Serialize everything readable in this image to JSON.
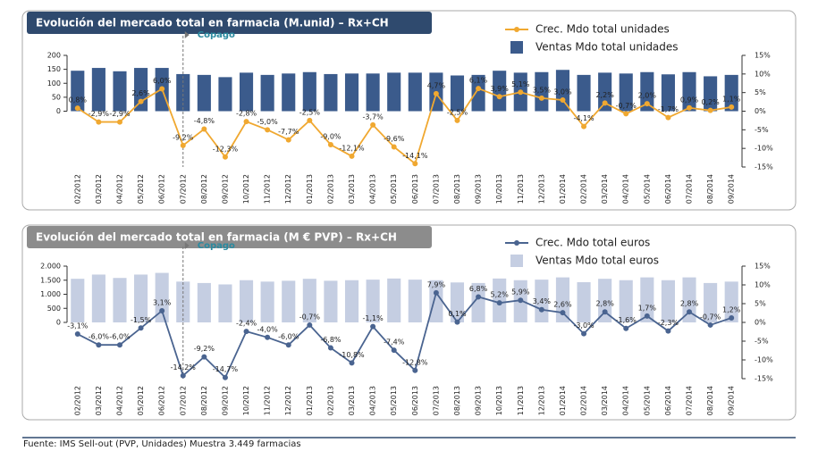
{
  "chart_data": [
    {
      "type": "bar",
      "title": "Evolución del mercado total en farmacia (M.unid) – Rx+CH",
      "categories": [
        "02/2012",
        "03/2012",
        "04/2012",
        "05/2012",
        "06/2012",
        "07/2012",
        "08/2012",
        "09/2012",
        "10/2012",
        "11/2012",
        "12/2012",
        "01/2013",
        "02/2013",
        "03/2013",
        "04/2013",
        "05/2013",
        "06/2013",
        "07/2013",
        "08/2013",
        "09/2013",
        "10/2013",
        "11/2013",
        "12/2013",
        "01/2014",
        "02/2014",
        "03/2014",
        "04/2014",
        "05/2014",
        "06/2014",
        "07/2014",
        "08/2014",
        "09/2014"
      ],
      "series": [
        {
          "name": "Crec. Mdo total unidades",
          "type": "line",
          "axis": "y2",
          "color": "#f0a830",
          "values": [
            0.8,
            -2.9,
            -2.9,
            2.6,
            6.0,
            -9.2,
            -4.8,
            -12.3,
            -2.8,
            -5.0,
            -7.7,
            -2.5,
            -9.0,
            -12.1,
            -3.7,
            -9.6,
            -14.1,
            4.7,
            -2.5,
            6.1,
            3.9,
            5.1,
            3.5,
            3.0,
            -4.1,
            2.2,
            -0.7,
            2.0,
            -1.7,
            0.9,
            0.2,
            1.1
          ],
          "value_labels": [
            "0,8%",
            "-2,9%",
            "-2,9%",
            "2,6%",
            "6,0%",
            "-9,2%",
            "-4,8%",
            "-12,3%",
            "-2,8%",
            "-5,0%",
            "-7,7%",
            "-2,5%",
            "-9,0%",
            "-12,1%",
            "-3,7%",
            "-9,6%",
            "-14,1%",
            "4,7%",
            "-2,5%",
            "6,1%",
            "3,9%",
            "5,1%",
            "3,5%",
            "3,0%",
            "-4,1%",
            "2,2%",
            "-0,7%",
            "2,0%",
            "-1,7%",
            "0,9%",
            "0,2%",
            "1,1%"
          ]
        },
        {
          "name": "Ventas Mdo total unidades",
          "type": "bar",
          "color": "#3b5b8c",
          "values": [
            145,
            155,
            143,
            155,
            155,
            133,
            130,
            122,
            138,
            130,
            135,
            140,
            133,
            135,
            135,
            138,
            138,
            138,
            128,
            130,
            145,
            138,
            140,
            148,
            130,
            138,
            135,
            140,
            132,
            140,
            125,
            130
          ]
        }
      ],
      "ylim": [
        -200,
        200
      ],
      "yticks": [
        0,
        50,
        100,
        150,
        200
      ],
      "y2lim": [
        -15,
        15
      ],
      "y2ticks": [
        {
          "value": 15,
          "label": "15%"
        },
        {
          "value": 10,
          "label": "10%"
        },
        {
          "value": 5,
          "label": "5%"
        },
        {
          "value": 0,
          "label": "0%"
        },
        {
          "value": -5,
          "label": "-5%"
        },
        {
          "value": -10,
          "label": "-10%"
        },
        {
          "value": -15,
          "label": "-15%"
        }
      ],
      "annotations": [
        {
          "text": "Copago"
        }
      ]
    },
    {
      "type": "bar",
      "title": "Evolución del mercado total en farmacia (M € PVP) – Rx+CH",
      "categories": [
        "02/2012",
        "03/2012",
        "04/2012",
        "05/2012",
        "06/2012",
        "07/2012",
        "08/2012",
        "09/2012",
        "10/2012",
        "11/2012",
        "12/2012",
        "01/2013",
        "02/2013",
        "03/2013",
        "04/2013",
        "05/2013",
        "06/2013",
        "07/2013",
        "08/2013",
        "09/2013",
        "10/2013",
        "11/2013",
        "12/2013",
        "01/2014",
        "02/2014",
        "03/2014",
        "04/2014",
        "05/2014",
        "06/2014",
        "07/2014",
        "08/2014",
        "09/2014"
      ],
      "series": [
        {
          "name": "Crec. Mdo total euros",
          "type": "line",
          "axis": "y2",
          "color": "#4a6490",
          "values": [
            -3.1,
            -6.0,
            -6.0,
            -1.5,
            3.1,
            -14.2,
            -9.2,
            -14.7,
            -2.4,
            -4.0,
            -6.0,
            -0.7,
            -6.8,
            -10.8,
            -1.1,
            -7.4,
            -12.8,
            7.9,
            0.1,
            6.8,
            5.2,
            5.9,
            3.4,
            2.6,
            -3.0,
            2.8,
            -1.6,
            1.7,
            -2.3,
            2.8,
            -0.7,
            1.2
          ],
          "value_labels": [
            "-3,1%",
            "-6,0%",
            "-6,0%",
            "-1,5%",
            "3,1%",
            "-14,2%",
            "-9,2%",
            "-14,7%",
            "-2,4%",
            "-4,0%",
            "-6,0%",
            "-0,7%",
            "-6,8%",
            "-10,8%",
            "-1,1%",
            "-7,4%",
            "-12,8%",
            "7,9%",
            "0,1%",
            "6,8%",
            "5,2%",
            "5,9%",
            "3,4%",
            "2,6%",
            "-3,0%",
            "2,8%",
            "-1,6%",
            "1,7%",
            "-2,3%",
            "2,8%",
            "-0,7%",
            "1,2%"
          ]
        },
        {
          "name": "Ventas Mdo total euros",
          "type": "bar",
          "color": "#c5cee2",
          "values": [
            1550,
            1700,
            1580,
            1700,
            1760,
            1450,
            1400,
            1350,
            1500,
            1450,
            1480,
            1550,
            1480,
            1500,
            1520,
            1560,
            1520,
            1500,
            1420,
            1400,
            1560,
            1500,
            1520,
            1600,
            1430,
            1550,
            1500,
            1600,
            1500,
            1600,
            1400,
            1450
          ]
        }
      ],
      "ylim": [
        -2000,
        2000
      ],
      "yticks": [
        0,
        500,
        {
          "value": 1000,
          "label": "1.000"
        },
        {
          "value": 1500,
          "label": "1.500"
        },
        {
          "value": 2000,
          "label": "2.000"
        }
      ],
      "y2lim": [
        -15,
        15
      ],
      "y2ticks": [
        {
          "value": 15,
          "label": "15%"
        },
        {
          "value": 10,
          "label": "10%"
        },
        {
          "value": 5,
          "label": "5%"
        },
        {
          "value": 0,
          "label": "0%"
        },
        {
          "value": -5,
          "label": "-5%"
        },
        {
          "value": -10,
          "label": "-10%"
        },
        {
          "value": -15,
          "label": "-15%"
        }
      ],
      "annotations": [
        {
          "text": "Copago"
        }
      ]
    }
  ],
  "source": "Fuente: IMS Sell-out (PVP, Unidades) Muestra 3.449  farmacias"
}
